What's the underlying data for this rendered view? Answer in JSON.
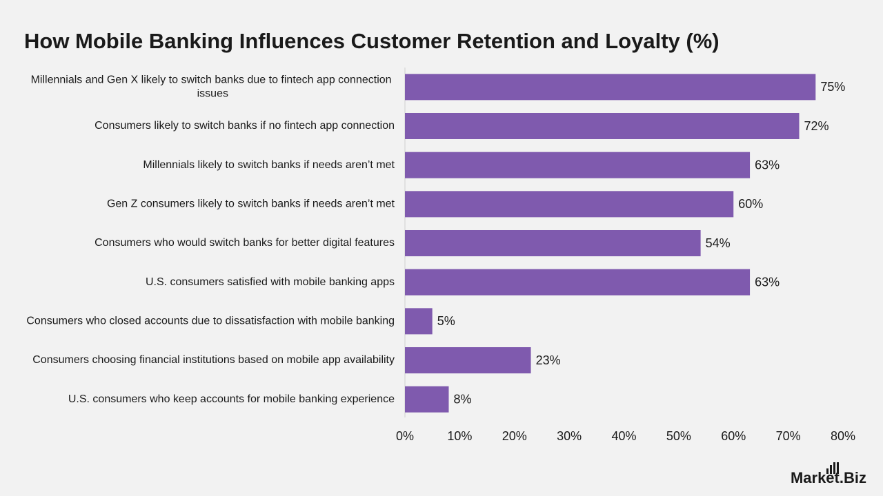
{
  "chart_data": {
    "type": "bar",
    "orientation": "horizontal",
    "title": "How Mobile Banking Influences Customer Retention and Loyalty (%)",
    "categories": [
      "Millennials and Gen X likely to switch banks due to fintech app connection issues",
      "Consumers likely to switch banks if no fintech app connection",
      "Millennials likely to switch banks if needs aren’t met",
      "Gen Z consumers likely to switch banks if needs aren’t met",
      "Consumers who would switch banks for better digital features",
      "U.S. consumers satisfied with mobile banking apps",
      "Consumers who closed accounts due to dissatisfaction with mobile banking",
      "Consumers choosing financial institutions based on mobile app availability",
      "U.S. consumers who keep accounts for mobile banking experience"
    ],
    "values": [
      75,
      72,
      63,
      60,
      54,
      63,
      5,
      23,
      8
    ],
    "value_labels": [
      "75%",
      "72%",
      "63%",
      "60%",
      "54%",
      "63%",
      "5%",
      "23%",
      "8%"
    ],
    "color": "#7f5aae",
    "xlim": [
      0,
      80
    ],
    "xticks": [
      {
        "value": 0,
        "label": "0%"
      },
      {
        "value": 10,
        "label": "10%"
      },
      {
        "value": 20,
        "label": "20%"
      },
      {
        "value": 30,
        "label": "30%"
      },
      {
        "value": 40,
        "label": "40%"
      },
      {
        "value": 50,
        "label": "50%"
      },
      {
        "value": 60,
        "label": "60%"
      },
      {
        "value": 70,
        "label": "70%"
      },
      {
        "value": 80,
        "label": "80%"
      }
    ],
    "grid": false
  },
  "brand": "Market.Biz"
}
